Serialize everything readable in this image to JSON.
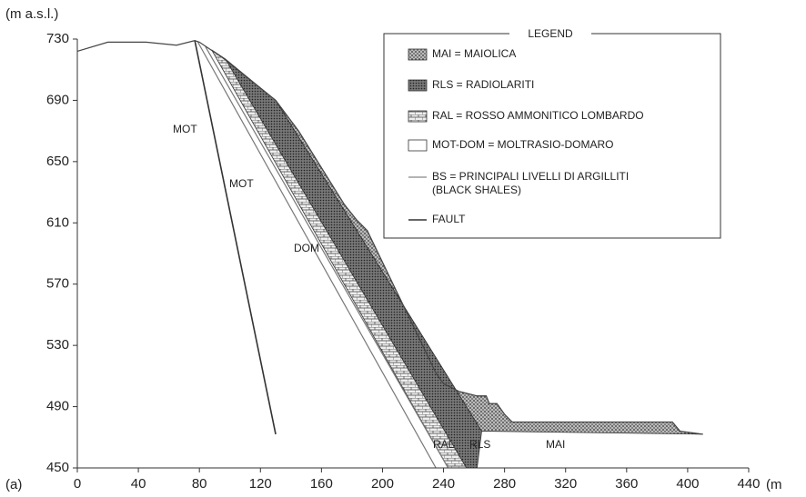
{
  "chart_data": {
    "type": "cross-section",
    "y_label": "(m a.s.l.)",
    "x_label": "(m",
    "panel_label": "(a)",
    "xlim": [
      0,
      440
    ],
    "xticks": [
      0,
      40,
      80,
      120,
      160,
      200,
      240,
      280,
      320,
      360,
      400,
      440
    ],
    "ylim": [
      450,
      730
    ],
    "yticks": [
      450,
      490,
      530,
      570,
      610,
      650,
      690,
      730
    ],
    "profile": {
      "x": [
        0,
        20,
        45,
        65,
        77,
        80,
        95,
        130,
        145,
        175,
        183,
        190,
        235,
        240,
        250,
        262,
        268,
        270,
        275,
        280,
        285,
        390,
        395,
        410
      ],
      "values": [
        722,
        728,
        728,
        726,
        729,
        728,
        718,
        690,
        670,
        622,
        612,
        605,
        512,
        505,
        500,
        497,
        497,
        492,
        492,
        485,
        480,
        480,
        474,
        472
      ]
    },
    "annotations": [
      "MOT",
      "MOT",
      "DOM",
      "RAL",
      "RLS",
      "MAI"
    ],
    "legend": {
      "title": "LEGEND",
      "items": [
        "MAI = MAIOLICA",
        "RLS = RADIOLARITI",
        "RAL = ROSSO AMMONITICO LOMBARDO",
        "MOT-DOM = MOLTRASIO-DOMARO",
        "BS  = PRINCIPALI LIVELLI DI ARGILLITI",
        "(BLACK SHALES)",
        "FAULT"
      ]
    }
  }
}
